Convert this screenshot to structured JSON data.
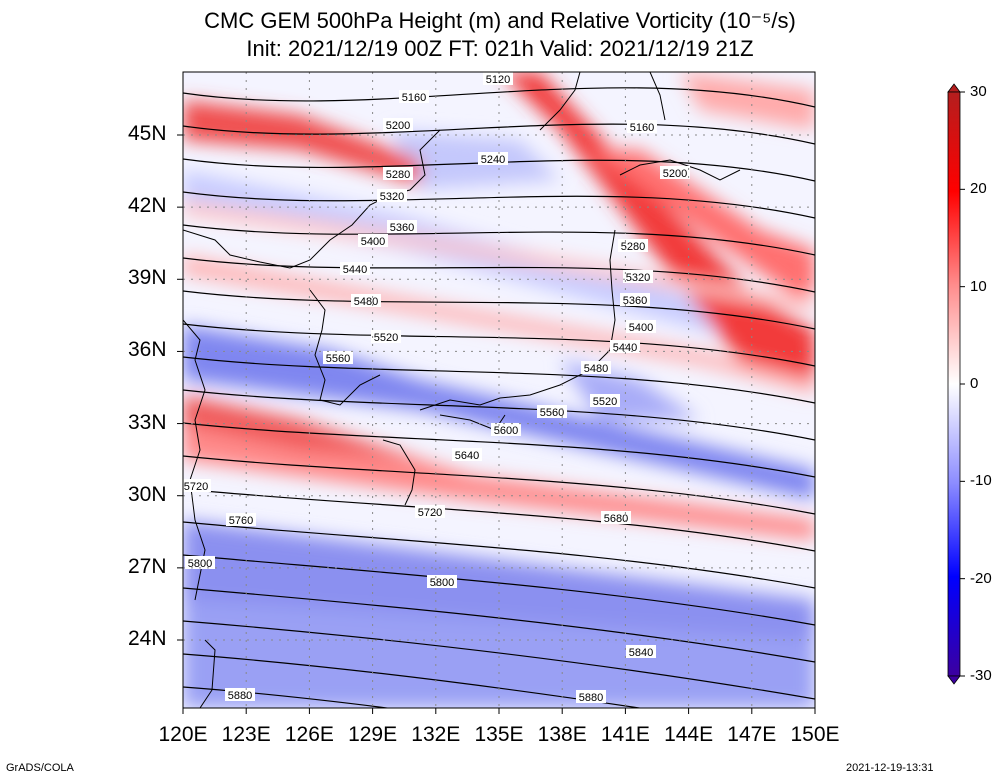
{
  "title": {
    "line1": "CMC GEM 500hPa Height (m) and Relative Vorticity (10⁻⁵/s)",
    "line2": "Init: 2021/12/19 00Z  FT: 021h  Valid: 2021/12/19 21Z"
  },
  "axes": {
    "lat_labels": [
      "45N",
      "42N",
      "39N",
      "36N",
      "33N",
      "30N",
      "27N",
      "24N"
    ],
    "lon_labels": [
      "120E",
      "123E",
      "126E",
      "129E",
      "132E",
      "135E",
      "138E",
      "141E",
      "144E",
      "147E",
      "150E"
    ]
  },
  "colorbar": {
    "labels": [
      "30",
      "20",
      "10",
      "0",
      "-10",
      "-20",
      "-30"
    ],
    "colors": [
      "#b41e1e",
      "#ff0000",
      "#ff8c8c",
      "#ffffff",
      "#8c8cff",
      "#0000ff",
      "#3c00a0"
    ]
  },
  "contours": [
    {
      "label": "5120"
    },
    {
      "label": "5160"
    },
    {
      "label": "5200"
    },
    {
      "label": "5240"
    },
    {
      "label": "5280"
    },
    {
      "label": "5320"
    },
    {
      "label": "5360"
    },
    {
      "label": "5400"
    },
    {
      "label": "5440"
    },
    {
      "label": "5480"
    },
    {
      "label": "5520"
    },
    {
      "label": "5560"
    },
    {
      "label": "5600"
    },
    {
      "label": "5640"
    },
    {
      "label": "5680"
    },
    {
      "label": "5720"
    },
    {
      "label": "5760"
    },
    {
      "label": "5800"
    },
    {
      "label": "5840"
    },
    {
      "label": "5880"
    }
  ],
  "contour_labels_shown": [
    "5120",
    "5160",
    "5160",
    "5200",
    "5200",
    "5240",
    "5280",
    "5280",
    "5320",
    "5320",
    "5360",
    "5360",
    "5400",
    "5400",
    "5440",
    "5440",
    "5480",
    "5480",
    "5520",
    "5520",
    "5560",
    "5560",
    "5600",
    "5640",
    "5680",
    "5720",
    "5720",
    "5760",
    "5800",
    "5800",
    "5840",
    "5880",
    "5880"
  ],
  "footer": {
    "left": "GrADS/COLA",
    "right": "2021-12-19-13:31"
  }
}
